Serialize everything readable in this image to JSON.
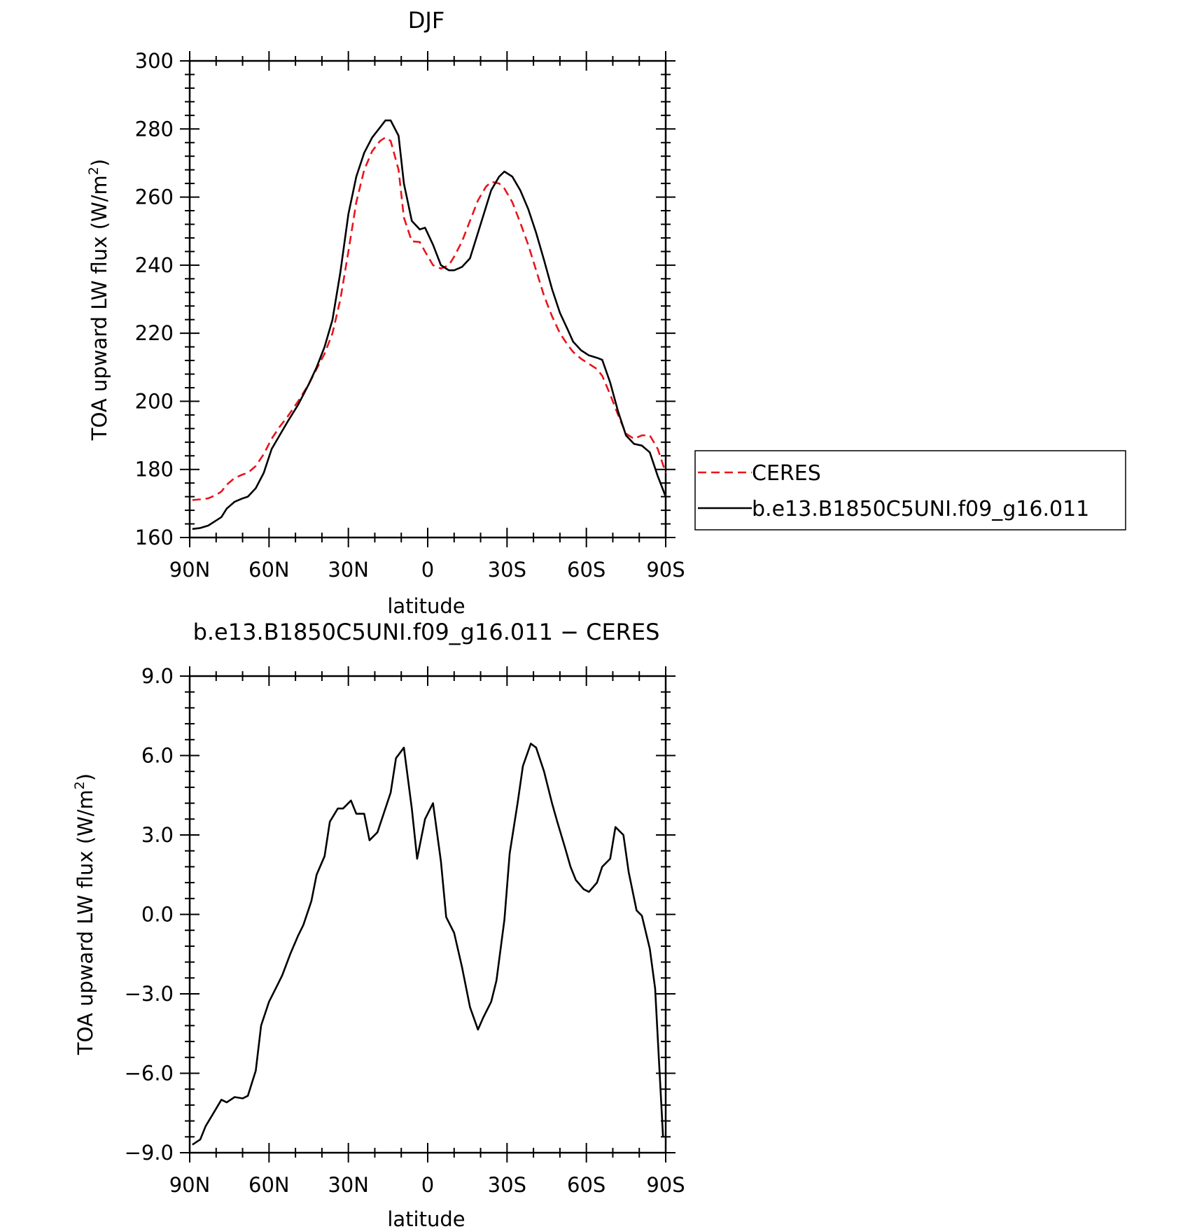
{
  "chart_data": [
    {
      "type": "line",
      "title": "DJF",
      "xlabel": "latitude",
      "ylabel": "TOA upward LW flux (W/m",
      "ylabel_sup": "2",
      "ylabel_end": ")",
      "xlim": [
        -90,
        90
      ],
      "ylim": [
        160,
        300
      ],
      "x_ticks": [
        {
          "v": -90,
          "label": "90N"
        },
        {
          "v": -60,
          "label": "60N"
        },
        {
          "v": -30,
          "label": "30N"
        },
        {
          "v": 0,
          "label": "0"
        },
        {
          "v": 30,
          "label": "30S"
        },
        {
          "v": 60,
          "label": "60S"
        },
        {
          "v": 90,
          "label": "90S"
        }
      ],
      "y_ticks": [
        {
          "v": 160,
          "label": "160"
        },
        {
          "v": 180,
          "label": "180"
        },
        {
          "v": 200,
          "label": "200"
        },
        {
          "v": 220,
          "label": "220"
        },
        {
          "v": 240,
          "label": "240"
        },
        {
          "v": 260,
          "label": "260"
        },
        {
          "v": 280,
          "label": "280"
        },
        {
          "v": 300,
          "label": "300"
        }
      ],
      "legend_position": "right",
      "series": [
        {
          "name": "CERES",
          "color": "#e8141c",
          "style": "dashed",
          "x": [
            -89,
            -86,
            -83,
            -80,
            -78,
            -76,
            -73,
            -70,
            -68,
            -65,
            -62,
            -59,
            -56,
            -53,
            -49,
            -45,
            -42,
            -39,
            -36,
            -33,
            -30,
            -27,
            -24,
            -21,
            -18,
            -16,
            -14,
            -11,
            -9,
            -6,
            -3,
            -1,
            2,
            5,
            8,
            10,
            13,
            16,
            19,
            22,
            24,
            27,
            29,
            32,
            35,
            38,
            41,
            44,
            47,
            50,
            53,
            55,
            58,
            61,
            64,
            66,
            69,
            72,
            75,
            78,
            81,
            84,
            87,
            90
          ],
          "y": [
            171,
            171.2,
            171.5,
            172.5,
            173.5,
            175.5,
            177.5,
            178.5,
            179,
            181,
            184.5,
            189,
            192.5,
            195.5,
            200,
            205,
            209.5,
            214,
            220,
            230,
            244,
            258.5,
            268,
            273.5,
            276.5,
            277.5,
            276.5,
            268,
            254,
            247,
            246.8,
            244,
            240,
            239,
            240,
            242.5,
            247,
            253,
            259,
            263,
            264.5,
            264,
            262.5,
            258.5,
            252.5,
            246,
            238.5,
            231,
            225,
            220,
            216.5,
            214.5,
            212.5,
            211,
            209.5,
            207.5,
            202,
            196,
            190.5,
            189,
            190,
            190,
            186,
            179
          ]
        },
        {
          "name": "b.e13.B1850C5UNI.f09_g16.011",
          "color": "#000000",
          "style": "solid",
          "x": [
            -89,
            -86,
            -83,
            -80,
            -78,
            -76,
            -73,
            -70,
            -68,
            -65,
            -62,
            -59,
            -56,
            -53,
            -49,
            -45,
            -42,
            -39,
            -36,
            -33,
            -30,
            -27,
            -24,
            -21,
            -18,
            -16,
            -14,
            -11,
            -9,
            -6,
            -3,
            -1,
            2,
            5,
            8,
            10,
            13,
            16,
            19,
            22,
            24,
            27,
            29,
            32,
            35,
            38,
            41,
            44,
            47,
            50,
            53,
            55,
            58,
            61,
            64,
            66,
            69,
            72,
            75,
            78,
            81,
            84,
            87,
            90
          ],
          "y": [
            162.5,
            162.8,
            163.5,
            165,
            166,
            168.5,
            170.5,
            171.5,
            172,
            174.5,
            179,
            186,
            190,
            194,
            199,
            205,
            210,
            216,
            224,
            238,
            255,
            266,
            273,
            277.5,
            280.5,
            282.5,
            282.5,
            278,
            264,
            253,
            250.5,
            251,
            246,
            240,
            238.5,
            238.5,
            239.5,
            242,
            249.5,
            257,
            262,
            266,
            267.5,
            266,
            262,
            256.5,
            249.5,
            241.5,
            233,
            226,
            221,
            217.5,
            215,
            213.5,
            212.8,
            212.2,
            205.5,
            197,
            190,
            187.5,
            187,
            185,
            178,
            172
          ]
        }
      ]
    },
    {
      "type": "line",
      "title": "b.e13.B1850C5UNI.f09_g16.011 − CERES",
      "xlabel": "latitude",
      "ylabel": "TOA upward LW flux (W/m",
      "ylabel_sup": "2",
      "ylabel_end": ")",
      "xlim": [
        -90,
        90
      ],
      "ylim": [
        -9,
        9
      ],
      "x_ticks": [
        {
          "v": -90,
          "label": "90N"
        },
        {
          "v": -60,
          "label": "60N"
        },
        {
          "v": -30,
          "label": "30N"
        },
        {
          "v": 0,
          "label": "0"
        },
        {
          "v": 30,
          "label": "30S"
        },
        {
          "v": 60,
          "label": "60S"
        },
        {
          "v": 90,
          "label": "90S"
        }
      ],
      "y_ticks": [
        {
          "v": -9,
          "label": "−9.0"
        },
        {
          "v": -6,
          "label": "−6.0"
        },
        {
          "v": -3,
          "label": "−3.0"
        },
        {
          "v": 0,
          "label": "0.0"
        },
        {
          "v": 3,
          "label": "3.0"
        },
        {
          "v": 6,
          "label": "6.0"
        },
        {
          "v": 9,
          "label": "9.0"
        }
      ],
      "series": [
        {
          "color": "#000000",
          "style": "solid",
          "x": [
            -89,
            -86,
            -84,
            -81,
            -78,
            -76,
            -73,
            -70,
            -68,
            -65,
            -63,
            -60,
            -57,
            -55,
            -52,
            -49,
            -47,
            -44,
            -42,
            -39,
            -37,
            -34,
            -32,
            -29,
            -27,
            -24,
            -22,
            -19,
            -17,
            -14,
            -12,
            -9,
            -6,
            -4,
            -1,
            2,
            5,
            7,
            10,
            13,
            16,
            19,
            21,
            24,
            26,
            29,
            31,
            34,
            36,
            39,
            41,
            44,
            47,
            49,
            52,
            54,
            56,
            59,
            61,
            64,
            66,
            69,
            71,
            74,
            76,
            79,
            81,
            84,
            86,
            89
          ],
          "y": [
            -8.7,
            -8.5,
            -8,
            -7.5,
            -7,
            -7.1,
            -6.9,
            -6.95,
            -6.85,
            -5.9,
            -4.2,
            -3.3,
            -2.7,
            -2.3,
            -1.5,
            -0.8,
            -0.4,
            0.5,
            1.5,
            2.2,
            3.5,
            4,
            4,
            4.3,
            3.8,
            3.8,
            2.8,
            3.1,
            3.7,
            4.6,
            5.9,
            6.3,
            4,
            2.1,
            3.6,
            4.2,
            2,
            -0.1,
            -0.7,
            -2,
            -3.5,
            -4.35,
            -3.9,
            -3.3,
            -2.5,
            -0.2,
            2.3,
            4.2,
            5.6,
            6.45,
            6.3,
            5.4,
            4.2,
            3.5,
            2.5,
            1.8,
            1.3,
            0.95,
            0.85,
            1.2,
            1.8,
            2.1,
            3.3,
            3,
            1.6,
            0.15,
            -0.05,
            -1.3,
            -2.8,
            -8.4
          ]
        }
      ]
    }
  ]
}
